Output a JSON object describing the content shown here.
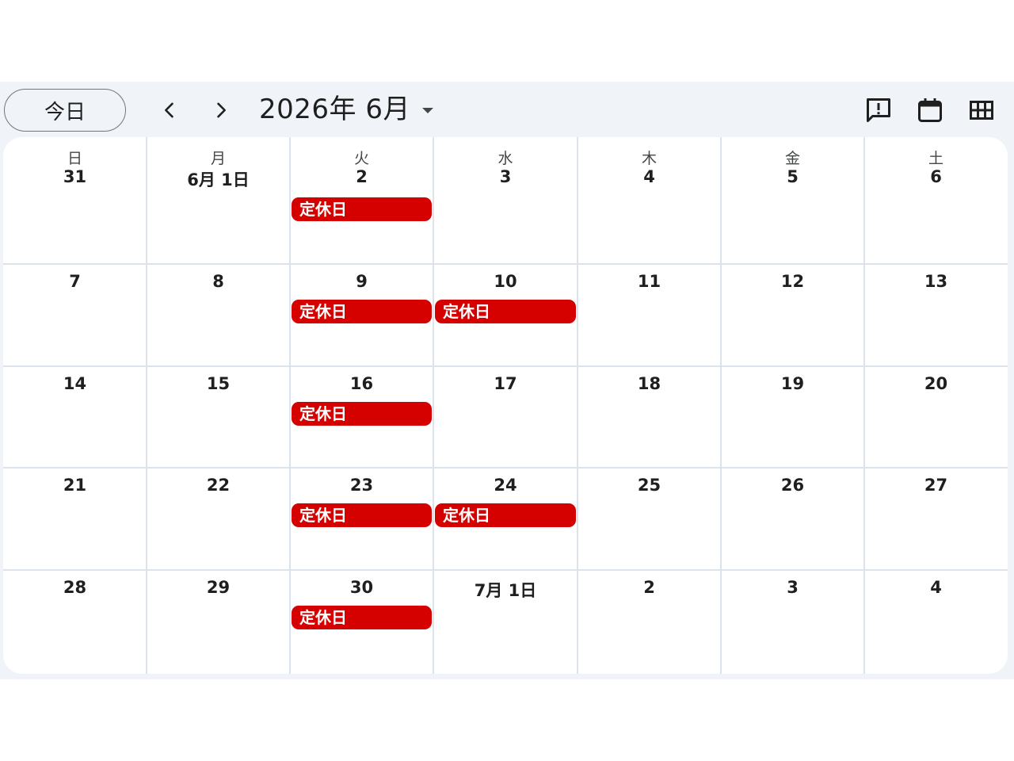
{
  "toolbar": {
    "today_label": "今日",
    "month_title": "2026年 6月",
    "prev_icon": "chevron-left-icon",
    "next_icon": "chevron-right-icon",
    "dropdown_icon": "caret-down-icon",
    "feedback_icon": "feedback-icon",
    "calendar_icon": "calendar-icon",
    "grid_icon": "grid-view-icon"
  },
  "calendar": {
    "weekdays": [
      "日",
      "月",
      "火",
      "水",
      "木",
      "金",
      "土"
    ],
    "weeks": [
      [
        {
          "date": "31"
        },
        {
          "date": "6月 1日"
        },
        {
          "date": "2",
          "event": "定休日"
        },
        {
          "date": "3"
        },
        {
          "date": "4"
        },
        {
          "date": "5"
        },
        {
          "date": "6"
        }
      ],
      [
        {
          "date": "7"
        },
        {
          "date": "8"
        },
        {
          "date": "9",
          "event": "定休日"
        },
        {
          "date": "10",
          "event": "定休日"
        },
        {
          "date": "11"
        },
        {
          "date": "12"
        },
        {
          "date": "13"
        }
      ],
      [
        {
          "date": "14"
        },
        {
          "date": "15"
        },
        {
          "date": "16",
          "event": "定休日"
        },
        {
          "date": "17"
        },
        {
          "date": "18"
        },
        {
          "date": "19"
        },
        {
          "date": "20"
        }
      ],
      [
        {
          "date": "21"
        },
        {
          "date": "22"
        },
        {
          "date": "23",
          "event": "定休日"
        },
        {
          "date": "24",
          "event": "定休日"
        },
        {
          "date": "25"
        },
        {
          "date": "26"
        },
        {
          "date": "27"
        }
      ],
      [
        {
          "date": "28"
        },
        {
          "date": "29"
        },
        {
          "date": "30",
          "event": "定休日"
        },
        {
          "date": "7月 1日"
        },
        {
          "date": "2"
        },
        {
          "date": "3"
        },
        {
          "date": "4"
        }
      ]
    ],
    "event_color": "#d50000"
  }
}
